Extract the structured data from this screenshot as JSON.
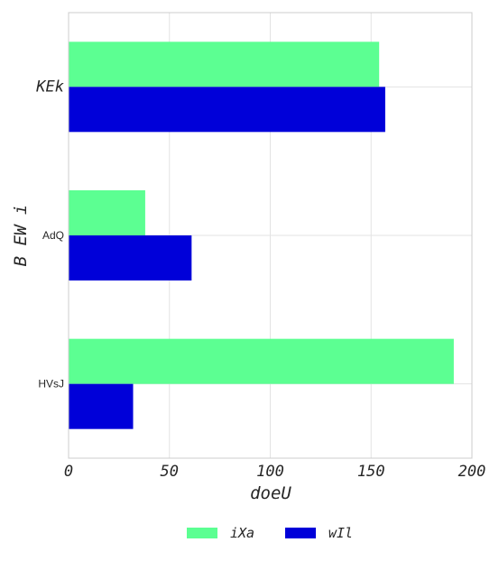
{
  "chart_data": {
    "type": "bar",
    "orientation": "horizontal",
    "categories": [
      "KEk",
      "AdQ",
      "HVsJ"
    ],
    "series": [
      {
        "name": "iXa",
        "values": [
          154,
          38,
          191
        ],
        "color": "#5cff92"
      },
      {
        "name": "wIl",
        "values": [
          157,
          61,
          32
        ],
        "color": "#0000d9"
      }
    ],
    "xlabel": "doeU",
    "ylabel": "B EW i",
    "xlim": [
      0,
      200
    ],
    "xticks": [
      "0",
      "50",
      "100",
      "150",
      "200"
    ],
    "grid": true,
    "legend": "bottom-center"
  }
}
